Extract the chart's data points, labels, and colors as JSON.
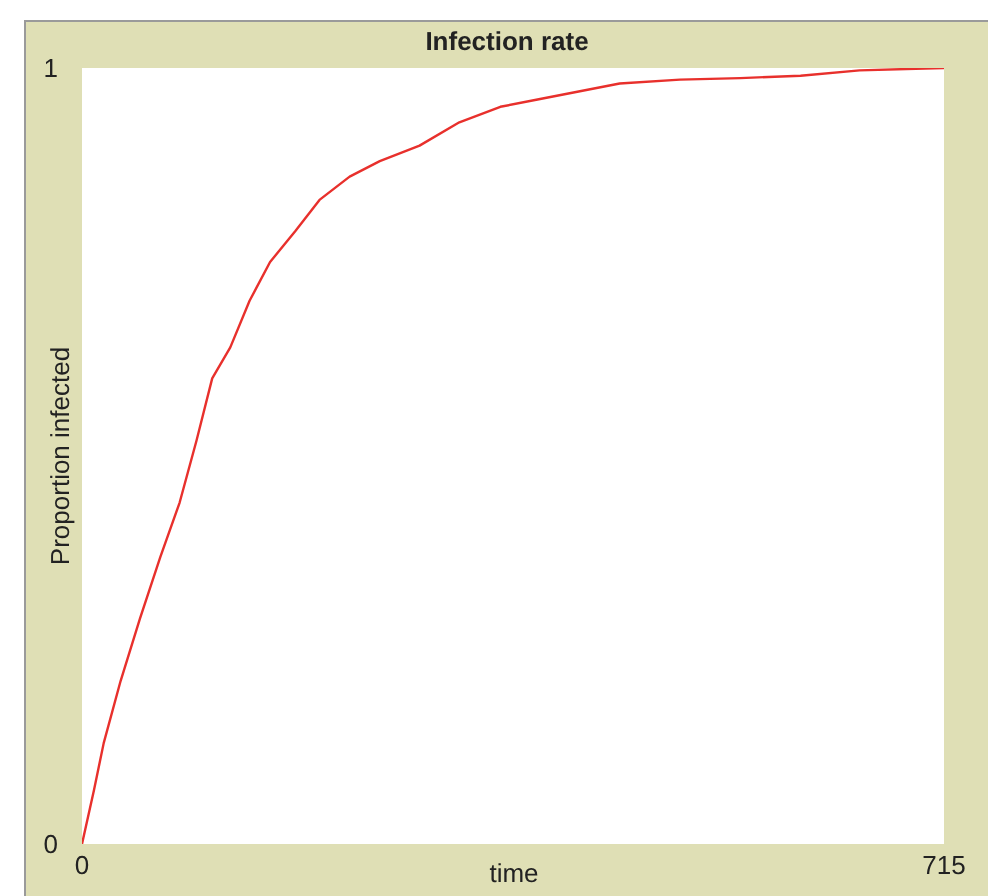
{
  "chart_data": {
    "type": "line",
    "title": "Infection rate",
    "xlabel": "time",
    "ylabel": "Proportion infected",
    "x": [
      0,
      10,
      18,
      32,
      48,
      65,
      81,
      95,
      108,
      123,
      139,
      156,
      177,
      197,
      222,
      247,
      280,
      313,
      347,
      380,
      413,
      446,
      496,
      546,
      596,
      645,
      715
    ],
    "series": [
      {
        "color": "#e8302c",
        "values": [
          0,
          0.07,
          0.13,
          0.21,
          0.29,
          0.37,
          0.44,
          0.52,
          0.6,
          0.64,
          0.7,
          0.75,
          0.79,
          0.83,
          0.86,
          0.88,
          0.9,
          0.93,
          0.95,
          0.96,
          0.97,
          0.98,
          0.985,
          0.987,
          0.99,
          0.997,
          1
        ]
      }
    ],
    "xlim": [
      0,
      715
    ],
    "ylim": [
      0,
      1
    ],
    "xticks": [
      0,
      715
    ],
    "yticks": [
      0,
      1
    ],
    "grid": false,
    "marker": "none",
    "line_style": "solid"
  }
}
